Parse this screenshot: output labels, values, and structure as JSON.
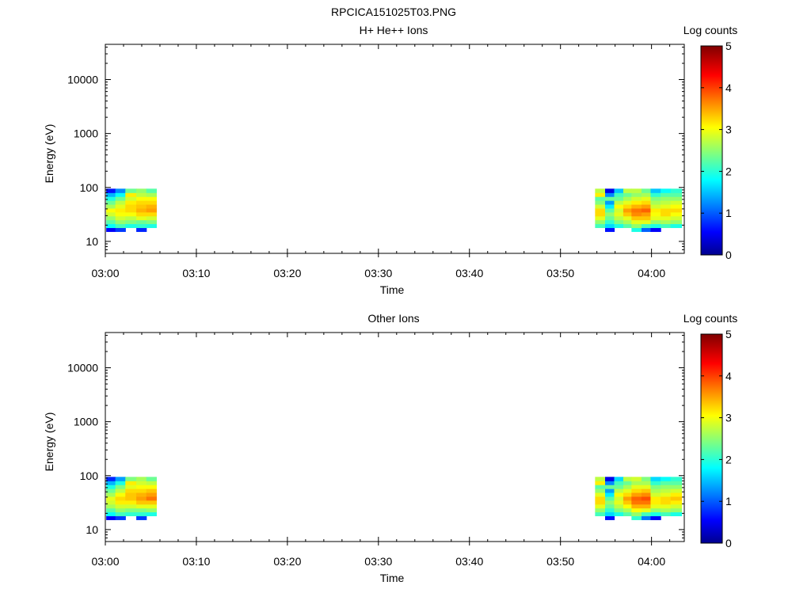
{
  "page": {
    "title": "RPCICA151025T03.PNG"
  },
  "colors": {
    "axis": "#000000",
    "background": "#ffffff"
  },
  "chart_data": [
    {
      "type": "heatmap",
      "title": "H+ He++ Ions",
      "xlabel": "Time",
      "ylabel": "Energy (eV)",
      "x_tick_labels": [
        "03:00",
        "03:10",
        "03:20",
        "03:30",
        "03:40",
        "03:50",
        "04:00"
      ],
      "x_tick_minutes": [
        0,
        10,
        20,
        30,
        40,
        50,
        60
      ],
      "xlim_minutes": [
        0,
        63.6
      ],
      "y_scale": "log",
      "ylim": [
        6,
        45000
      ],
      "y_tick_labels": [
        "10",
        "100",
        "1000",
        "10000"
      ],
      "y_tick_values": [
        10,
        100,
        1000,
        10000
      ],
      "colorbar": {
        "label": "Log counts",
        "range": [
          0,
          5
        ],
        "tick_labels": [
          "0",
          "1",
          "2",
          "3",
          "4",
          "5"
        ],
        "colormap": "jet"
      },
      "energy_bins_eV": [
        16.6,
        19.6,
        23.2,
        27.3,
        32.3,
        38.1,
        45.0,
        53.1,
        62.7,
        74.0,
        87.3
      ],
      "columns": [
        {
          "t0": 0.1,
          "t1": 1.1,
          "values": [
            0.6,
            1.9,
            2.3,
            2.6,
            2.9,
            3.1,
            2.7,
            2.4,
            2.0,
            1.5,
            0.7
          ]
        },
        {
          "t0": 1.1,
          "t1": 2.2,
          "values": [
            0.9,
            2.2,
            2.6,
            2.9,
            3.1,
            3.2,
            3.0,
            2.8,
            2.4,
            1.9,
            1.3
          ]
        },
        {
          "t0": 2.2,
          "t1": 3.4,
          "values": [
            null,
            2.0,
            2.5,
            2.8,
            3.1,
            3.3,
            3.3,
            3.2,
            2.9,
            3.2,
            2.4
          ]
        },
        {
          "t0": 3.4,
          "t1": 4.5,
          "values": [
            0.8,
            2.1,
            2.4,
            3.0,
            3.3,
            3.5,
            3.4,
            3.3,
            3.1,
            2.8,
            2.6
          ]
        },
        {
          "t0": 4.5,
          "t1": 5.6,
          "values": [
            null,
            2.0,
            2.5,
            2.9,
            3.3,
            3.6,
            3.5,
            3.3,
            3.1,
            2.7,
            2.3
          ]
        },
        {
          "t0": 53.8,
          "t1": 54.9,
          "values": [
            null,
            2.2,
            2.6,
            3.0,
            3.3,
            3.3,
            2.9,
            2.5,
            2.3,
            3.2,
            2.8
          ]
        },
        {
          "t0": 54.9,
          "t1": 55.9,
          "values": [
            0.7,
            1.7,
            2.1,
            2.4,
            2.6,
            2.3,
            1.8,
            1.4,
            2.4,
            1.3,
            0.5
          ]
        },
        {
          "t0": 55.9,
          "t1": 56.9,
          "values": [
            null,
            2.0,
            2.5,
            2.8,
            3.0,
            2.9,
            3.1,
            2.8,
            2.4,
            2.2,
            1.6
          ]
        },
        {
          "t0": 56.9,
          "t1": 57.8,
          "values": [
            null,
            2.3,
            2.7,
            3.0,
            3.4,
            3.6,
            3.3,
            3.0,
            2.7,
            2.4,
            2.8
          ]
        },
        {
          "t0": 57.8,
          "t1": 58.9,
          "values": [
            2.0,
            2.6,
            3.0,
            3.4,
            3.7,
            3.8,
            3.5,
            3.2,
            2.9,
            2.6,
            2.8
          ]
        },
        {
          "t0": 58.9,
          "t1": 59.9,
          "values": [
            1.1,
            2.2,
            3.0,
            3.4,
            3.6,
            3.9,
            3.6,
            3.3,
            3.0,
            2.7,
            2.4
          ]
        },
        {
          "t0": 59.9,
          "t1": 61.0,
          "values": [
            0.6,
            2.0,
            2.6,
            3.0,
            3.1,
            3.2,
            2.9,
            2.7,
            2.5,
            2.1,
            1.6
          ]
        },
        {
          "t0": 61.0,
          "t1": 62.1,
          "values": [
            null,
            2.2,
            2.7,
            3.0,
            3.3,
            3.3,
            3.0,
            2.8,
            2.6,
            2.3,
            1.9
          ]
        },
        {
          "t0": 62.1,
          "t1": 63.3,
          "values": [
            null,
            2.0,
            2.6,
            2.9,
            3.1,
            3.3,
            3.1,
            2.9,
            2.6,
            2.3,
            2.1
          ]
        }
      ]
    },
    {
      "type": "heatmap",
      "title": "Other Ions",
      "xlabel": "Time",
      "ylabel": "Energy (eV)",
      "x_tick_labels": [
        "03:00",
        "03:10",
        "03:20",
        "03:30",
        "03:40",
        "03:50",
        "04:00"
      ],
      "x_tick_minutes": [
        0,
        10,
        20,
        30,
        40,
        50,
        60
      ],
      "xlim_minutes": [
        0,
        63.6
      ],
      "y_scale": "log",
      "ylim": [
        6,
        45000
      ],
      "y_tick_labels": [
        "10",
        "100",
        "1000",
        "10000"
      ],
      "y_tick_values": [
        10,
        100,
        1000,
        10000
      ],
      "colorbar": {
        "label": "Log counts",
        "range": [
          0,
          5
        ],
        "tick_labels": [
          "0",
          "1",
          "2",
          "3",
          "4",
          "5"
        ],
        "colormap": "jet"
      },
      "energy_bins_eV": [
        16.6,
        19.6,
        23.2,
        27.3,
        32.3,
        38.1,
        45.0,
        53.1,
        62.7,
        74.0,
        87.3
      ],
      "columns": [
        {
          "t0": 0.1,
          "t1": 1.1,
          "values": [
            0.6,
            1.9,
            2.3,
            2.7,
            2.9,
            3.0,
            2.7,
            2.4,
            2.0,
            1.5,
            0.8
          ]
        },
        {
          "t0": 1.1,
          "t1": 2.2,
          "values": [
            0.9,
            2.2,
            2.6,
            2.9,
            3.2,
            3.3,
            3.1,
            2.8,
            2.5,
            2.0,
            1.4
          ]
        },
        {
          "t0": 2.2,
          "t1": 3.4,
          "values": [
            null,
            2.1,
            2.5,
            2.9,
            3.2,
            3.4,
            3.4,
            3.3,
            3.0,
            3.2,
            2.5
          ]
        },
        {
          "t0": 3.4,
          "t1": 4.5,
          "values": [
            0.9,
            2.1,
            2.5,
            3.0,
            3.4,
            3.6,
            3.5,
            3.3,
            3.1,
            2.9,
            2.7
          ]
        },
        {
          "t0": 4.5,
          "t1": 5.6,
          "values": [
            null,
            2.0,
            2.6,
            3.0,
            3.4,
            3.8,
            3.6,
            3.4,
            3.1,
            2.8,
            2.4
          ]
        },
        {
          "t0": 53.8,
          "t1": 54.9,
          "values": [
            null,
            2.2,
            2.6,
            3.0,
            3.3,
            3.3,
            3.0,
            2.6,
            2.3,
            3.2,
            2.8
          ]
        },
        {
          "t0": 54.9,
          "t1": 55.9,
          "values": [
            0.7,
            1.7,
            2.1,
            2.4,
            2.6,
            2.3,
            1.8,
            1.4,
            2.4,
            1.3,
            0.5
          ]
        },
        {
          "t0": 55.9,
          "t1": 56.9,
          "values": [
            null,
            2.0,
            2.5,
            2.8,
            3.0,
            2.9,
            3.1,
            2.8,
            2.4,
            2.2,
            1.7
          ]
        },
        {
          "t0": 56.9,
          "t1": 57.8,
          "values": [
            null,
            2.3,
            2.7,
            3.1,
            3.4,
            3.6,
            3.3,
            3.0,
            2.7,
            2.4,
            2.8
          ]
        },
        {
          "t0": 57.8,
          "t1": 58.9,
          "values": [
            2.1,
            2.6,
            3.1,
            3.5,
            3.8,
            3.9,
            3.6,
            3.3,
            3.0,
            2.7,
            2.9
          ]
        },
        {
          "t0": 58.9,
          "t1": 59.9,
          "values": [
            1.2,
            2.2,
            3.0,
            3.5,
            3.8,
            4.0,
            3.7,
            3.4,
            3.0,
            2.7,
            2.5
          ]
        },
        {
          "t0": 59.9,
          "t1": 61.0,
          "values": [
            0.6,
            2.0,
            2.6,
            3.0,
            3.2,
            3.2,
            2.9,
            2.7,
            2.5,
            2.1,
            1.7
          ]
        },
        {
          "t0": 61.0,
          "t1": 62.1,
          "values": [
            null,
            2.2,
            2.7,
            3.0,
            3.3,
            3.3,
            3.0,
            2.8,
            2.6,
            2.3,
            1.9
          ]
        },
        {
          "t0": 62.1,
          "t1": 63.3,
          "values": [
            null,
            2.0,
            2.6,
            2.9,
            3.2,
            3.4,
            3.2,
            2.9,
            2.6,
            2.3,
            2.1
          ]
        }
      ]
    }
  ]
}
